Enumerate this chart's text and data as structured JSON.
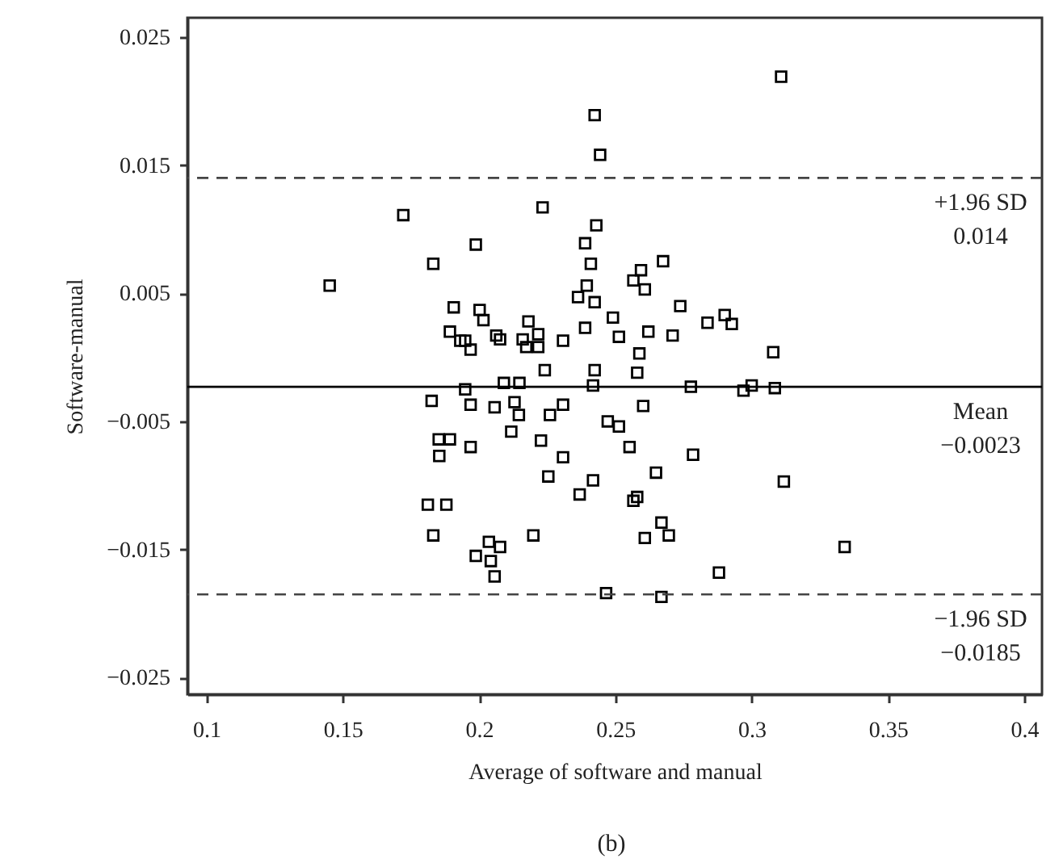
{
  "chart_data": {
    "type": "scatter",
    "xlabel": "Average of software and manual",
    "ylabel": "Software-manual",
    "xlim": [
      0.093,
      0.4065
    ],
    "ylim": [
      -0.0263,
      0.0265
    ],
    "xticks": [
      0.1,
      0.15,
      0.2,
      0.25,
      0.3,
      0.35,
      0.4
    ],
    "yticks": [
      {
        "value": -0.025,
        "label": "−0.025"
      },
      {
        "value": -0.015,
        "label": "−0.015"
      },
      {
        "value": -0.005,
        "label": "−0.005"
      },
      0.005,
      0.015,
      0.025
    ],
    "grid": false,
    "marker": "square",
    "ref_lines": [
      {
        "axis": "y",
        "value": 0.014,
        "label": "+1.96 SD\n0.014",
        "line_style": "dashed",
        "color": "#444444"
      },
      {
        "axis": "y",
        "value": -0.0023,
        "label": "Mean\n−0.0023",
        "line_style": "solid",
        "color": "#000000"
      },
      {
        "axis": "y",
        "value": -0.0185,
        "label": "−1.96 SD\n−0.0185",
        "line_style": "dashed",
        "color": "#444444"
      }
    ],
    "annotations": [
      "(b)"
    ],
    "series": [
      {
        "color": "#000000",
        "x": [
          0.2444,
          0.2424,
          0.3108,
          0.1722,
          0.2233,
          0.243,
          0.1988,
          0.2389,
          0.1832,
          0.241,
          0.2675,
          0.2594,
          0.2566,
          0.2608,
          0.1452,
          0.2395,
          0.2363,
          0.2424,
          0.2738,
          0.1907,
          0.2002,
          0.2016,
          0.2491,
          0.2181,
          0.2901,
          0.2838,
          0.2927,
          0.1893,
          0.2389,
          0.2621,
          0.271,
          0.2513,
          0.1931,
          0.1949,
          0.1969,
          0.2063,
          0.2077,
          0.216,
          0.2217,
          0.2173,
          0.2217,
          0.2308,
          0.2588,
          0.2241,
          0.2424,
          0.258,
          0.3079,
          0.1949,
          0.2091,
          0.2148,
          0.2418,
          0.2777,
          0.3,
          0.297,
          0.3085,
          0.1826,
          0.1969,
          0.2057,
          0.213,
          0.2146,
          0.2308,
          0.226,
          0.2472,
          0.2513,
          0.2602,
          0.2118,
          0.2227,
          0.1852,
          0.1893,
          0.1854,
          0.1969,
          0.2308,
          0.2552,
          0.2785,
          0.2254,
          0.2418,
          0.2369,
          0.2649,
          0.258,
          0.2566,
          0.1812,
          0.188,
          0.1832,
          0.2199,
          0.2036,
          0.2077,
          0.1988,
          0.2043,
          0.2057,
          0.2669,
          0.2608,
          0.2696,
          0.288,
          0.2466,
          0.2669,
          0.3341,
          0.3118
        ],
        "values": [
          0.0158,
          0.0189,
          0.0219,
          0.0111,
          0.0117,
          0.0103,
          0.0088,
          0.0089,
          0.0073,
          0.0073,
          0.0075,
          0.0068,
          0.006,
          0.0053,
          0.0056,
          0.0056,
          0.0047,
          0.0043,
          0.004,
          0.0039,
          0.0037,
          0.0029,
          0.0031,
          0.0028,
          0.0033,
          0.0027,
          0.0026,
          0.002,
          0.0023,
          0.002,
          0.0017,
          0.0016,
          0.0013,
          0.0013,
          0.0006,
          0.0017,
          0.0014,
          0.0014,
          0.0018,
          0.0008,
          0.0008,
          0.0013,
          0.0003,
          -0.001,
          -0.001,
          -0.0012,
          0.0004,
          -0.0025,
          -0.002,
          -0.002,
          -0.0022,
          -0.0023,
          -0.0022,
          -0.0026,
          -0.0024,
          -0.0034,
          -0.0037,
          -0.0039,
          -0.0035,
          -0.0045,
          -0.0037,
          -0.0045,
          -0.005,
          -0.0054,
          -0.0038,
          -0.0058,
          -0.0065,
          -0.0064,
          -0.0064,
          -0.0077,
          -0.007,
          -0.0078,
          -0.007,
          -0.0076,
          -0.0093,
          -0.0096,
          -0.0107,
          -0.009,
          -0.0109,
          -0.0112,
          -0.0115,
          -0.0115,
          -0.0139,
          -0.0139,
          -0.0144,
          -0.0148,
          -0.0155,
          -0.0159,
          -0.0171,
          -0.0129,
          -0.0141,
          -0.0139,
          -0.0168,
          -0.0184,
          -0.0187,
          -0.0148,
          -0.0097
        ]
      }
    ]
  }
}
